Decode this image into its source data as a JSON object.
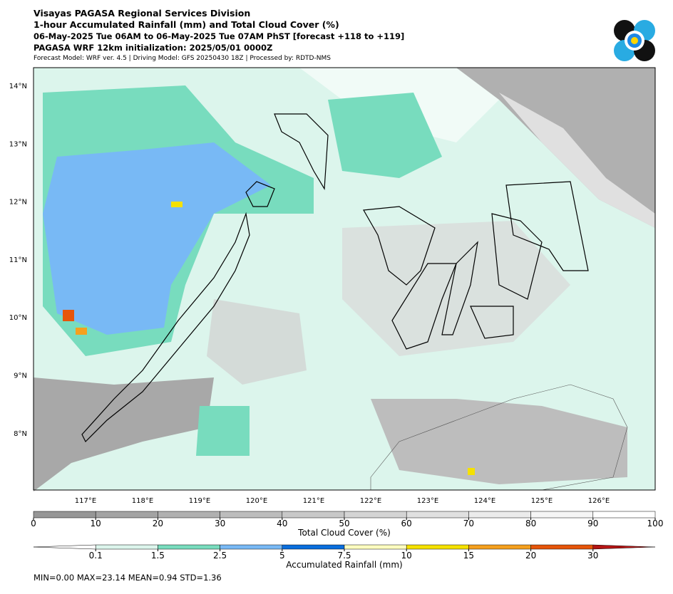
{
  "header": {
    "lines": [
      "Visayas PAGASA Regional Services Division",
      "1-hour Accumulated Rainfall (mm) and Total Cloud Cover (%)",
      "06-May-2025 Tue 06AM to 06-May-2025 Tue 07AM PhST [forecast +118 to +119]",
      "PAGASA WRF 12km initialization: 2025/05/01 0000Z",
      "Forecast Model: WRF ver. 4.5 | Driving Model: GFS 20250430 18Z | Processed by: RDTD-NMS"
    ]
  },
  "map": {
    "lat_labels": [
      "14°N",
      "13°N",
      "12°N",
      "11°N",
      "10°N",
      "9°N",
      "8°N"
    ],
    "lon_labels": [
      "117°E",
      "118°E",
      "119°E",
      "120°E",
      "121°E",
      "122°E",
      "123°E",
      "124°E",
      "125°E",
      "126°E"
    ]
  },
  "cloud_colorbar": {
    "label": "Total Cloud Cover (%)",
    "ticks": [
      0,
      10,
      20,
      30,
      40,
      50,
      60,
      70,
      80,
      90,
      100
    ],
    "colors": [
      "#969696",
      "#a3a3a3",
      "#b0b0b0",
      "#bcbcbc",
      "#c8c8c8",
      "#d4d4d4",
      "#e0e0e0",
      "#ebebeb",
      "#f5f5f5",
      "#ffffff"
    ]
  },
  "rain_colorbar": {
    "label": "Accumulated Rainfall (mm)",
    "ticks": [
      0.1,
      1.5,
      2.5,
      5,
      7.5,
      10,
      15,
      20,
      30
    ],
    "colors": [
      "#ffffff",
      "#dcf5ec",
      "#78dcbe",
      "#78b9f5",
      "#0a6edc",
      "#ffffc0",
      "#f5e100",
      "#f5a01e",
      "#e6550a",
      "#b41414"
    ]
  },
  "stats": "MIN=0.00   MAX=23.14   MEAN=0.94   STD=1.36"
}
